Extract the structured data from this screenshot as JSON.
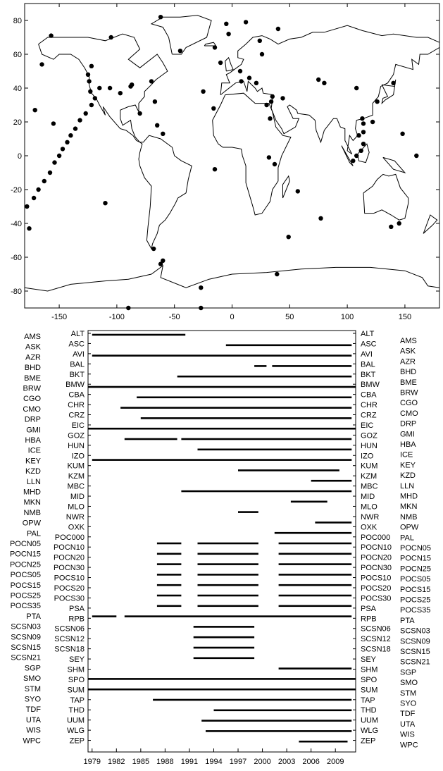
{
  "chart_data": [
    {
      "type": "scatter",
      "xlim": [
        -180,
        180
      ],
      "ylim": [
        -90,
        90
      ],
      "x_ticks": [
        -150,
        -100,
        -50,
        0,
        50,
        100,
        150
      ],
      "y_ticks": [
        80,
        60,
        40,
        20,
        0,
        -20,
        -40,
        -60,
        -80
      ],
      "grid": false,
      "points": [
        [
          -178,
          -30
        ],
        [
          -176,
          -43
        ],
        [
          -172,
          -25
        ],
        [
          -168,
          -20
        ],
        [
          -163,
          -15
        ],
        [
          -158,
          -10
        ],
        [
          -154,
          -4
        ],
        [
          -150,
          0
        ],
        [
          -147,
          4
        ],
        [
          -143,
          8
        ],
        [
          -140,
          12
        ],
        [
          -136,
          16
        ],
        [
          -132,
          21
        ],
        [
          -127,
          25
        ],
        [
          -122,
          30
        ],
        [
          -119,
          34
        ],
        [
          -123,
          38
        ],
        [
          -124,
          44
        ],
        [
          -125,
          48
        ],
        [
          -122,
          53
        ],
        [
          -157,
          71
        ],
        [
          -165,
          54
        ],
        [
          -171,
          27
        ],
        [
          -155,
          19
        ],
        [
          -106,
          40
        ],
        [
          -97,
          37
        ],
        [
          -88,
          41
        ],
        [
          -115,
          40
        ],
        [
          -110,
          -28
        ],
        [
          -67,
          32
        ],
        [
          -65,
          18
        ],
        [
          -60,
          13
        ],
        [
          -80,
          25
        ],
        [
          -87,
          42
        ],
        [
          -70,
          44
        ],
        [
          -68,
          -55
        ],
        [
          -60,
          -62
        ],
        [
          -25,
          38
        ],
        [
          -16,
          28
        ],
        [
          -15,
          64
        ],
        [
          -3,
          72
        ],
        [
          12,
          79
        ],
        [
          24,
          68
        ],
        [
          15,
          46
        ],
        [
          7,
          50
        ],
        [
          -10,
          55
        ],
        [
          8,
          44
        ],
        [
          21,
          43
        ],
        [
          34,
          32
        ],
        [
          30,
          30
        ],
        [
          35,
          35
        ],
        [
          33,
          22
        ],
        [
          32,
          -1
        ],
        [
          -15,
          -8
        ],
        [
          57,
          -21
        ],
        [
          37,
          -5
        ],
        [
          49,
          -48
        ],
        [
          77,
          -37
        ],
        [
          44,
          34
        ],
        [
          26,
          60
        ],
        [
          113,
          22
        ],
        [
          114,
          19
        ],
        [
          114,
          14
        ],
        [
          114,
          7
        ],
        [
          112,
          3
        ],
        [
          108,
          0
        ],
        [
          105,
          -3
        ],
        [
          110,
          12
        ],
        [
          122,
          20
        ],
        [
          108,
          40
        ],
        [
          140,
          43
        ],
        [
          148,
          13
        ],
        [
          145,
          -40
        ],
        [
          138,
          -42
        ],
        [
          160,
          0
        ],
        [
          -105,
          70
        ],
        [
          -45,
          62
        ],
        [
          -27,
          -78
        ],
        [
          -62,
          -64
        ],
        [
          -62,
          82
        ],
        [
          -5,
          78
        ],
        [
          40,
          75
        ],
        [
          75,
          45
        ],
        [
          80,
          43
        ],
        [
          -90,
          -90
        ],
        [
          39,
          -70
        ],
        [
          -27,
          -90
        ],
        [
          126,
          32
        ]
      ]
    },
    {
      "type": "timeline",
      "x_ticks": [
        1979,
        1982,
        1985,
        1988,
        1991,
        1994,
        1997,
        2000,
        2003,
        2006,
        2009
      ],
      "xlim": [
        1978.5,
        2011.5
      ],
      "stations_left": [
        "AMS",
        "ASK",
        "AZR",
        "BHD",
        "BME",
        "BRW",
        "CGO",
        "CMO",
        "DRP",
        "GMI",
        "HBA",
        "ICE",
        "KEY",
        "KZD",
        "LLN",
        "MHD",
        "MKN",
        "NMB",
        "OPW",
        "PAL",
        "POCN05",
        "POCN15",
        "POCN25",
        "POCS05",
        "POCS15",
        "POCS25",
        "POCS35",
        "PTA",
        "SCSN03",
        "SCSN09",
        "SCSN15",
        "SCSN21",
        "SGP",
        "SMO",
        "STM",
        "SYO",
        "TDF",
        "UTA",
        "WIS",
        "WPC"
      ],
      "stations_right": [
        "ALT",
        "ASC",
        "AVI",
        "BAL",
        "BKT",
        "BMW",
        "CBA",
        "CHR",
        "CRZ",
        "EIC",
        "GOZ",
        "HUN",
        "IZO",
        "KUM",
        "KZM",
        "MBC",
        "MID",
        "MLO",
        "NWR",
        "OXK",
        "POC000",
        "POCN10",
        "POCN20",
        "POCN30",
        "POCS10",
        "POCS20",
        "POCS30",
        "PSA",
        "RPB",
        "SCSN06",
        "SCSN12",
        "SCSN18",
        "SEY",
        "SHM",
        "SPO",
        "SUM",
        "TAP",
        "THD",
        "UUM",
        "WLG",
        "ZEP"
      ],
      "rows": [
        {
          "name": "AMS",
          "segments": [
            [
              1979,
              1990.5
            ]
          ]
        },
        {
          "name": "ASK",
          "segments": [
            [
              1995.5,
              2011
            ]
          ]
        },
        {
          "name": "AZR",
          "segments": [
            [
              1979,
              2011
            ]
          ]
        },
        {
          "name": "BHD",
          "segments": [
            [
              1999,
              2000.5
            ],
            [
              2001.2,
              2011
            ]
          ]
        },
        {
          "name": "BME",
          "segments": [
            [
              1989.5,
              2011
            ]
          ]
        },
        {
          "name": "BRW",
          "segments": [
            [
              1978.5,
              2011.5
            ]
          ]
        },
        {
          "name": "CGO",
          "segments": [
            [
              1984.5,
              2011
            ]
          ]
        },
        {
          "name": "CMO",
          "segments": [
            [
              1982.5,
              2011
            ]
          ]
        },
        {
          "name": "DRP",
          "segments": [
            [
              1985,
              2011
            ]
          ]
        },
        {
          "name": "GMI",
          "segments": [
            [
              1978.5,
              2011.5
            ]
          ]
        },
        {
          "name": "HBA",
          "segments": [
            [
              1983,
              1989.5
            ],
            [
              1990,
              2011
            ]
          ]
        },
        {
          "name": "ICE",
          "segments": [
            [
              1992,
              2011
            ]
          ]
        },
        {
          "name": "KEY",
          "segments": [
            [
              1979,
              2011
            ]
          ]
        },
        {
          "name": "KZD",
          "segments": [
            [
              1997,
              2009.5
            ]
          ]
        },
        {
          "name": "LLN",
          "segments": [
            [
              2006,
              2011
            ]
          ]
        },
        {
          "name": "MHD",
          "segments": [
            [
              1990,
              2011
            ]
          ]
        },
        {
          "name": "MKN",
          "segments": [
            [
              2003.5,
              2008
            ]
          ]
        },
        {
          "name": "NMB",
          "segments": [
            [
              1997,
              1999.5
            ]
          ]
        },
        {
          "name": "OPW",
          "segments": [
            [
              2006.5,
              2011
            ]
          ]
        },
        {
          "name": "PAL",
          "segments": [
            [
              2001.5,
              2011
            ]
          ]
        },
        {
          "name": "POCN05",
          "segments": [
            [
              1987,
              1990
            ],
            [
              1992,
              1999.5
            ],
            [
              2002,
              2011
            ]
          ]
        },
        {
          "name": "POCN15",
          "segments": [
            [
              1987,
              1990
            ],
            [
              1992,
              1999.5
            ],
            [
              2002,
              2011
            ]
          ]
        },
        {
          "name": "POCN25",
          "segments": [
            [
              1987,
              1990
            ],
            [
              1992,
              1999.5
            ],
            [
              2002,
              2011
            ]
          ]
        },
        {
          "name": "POCS05",
          "segments": [
            [
              1987,
              1990
            ],
            [
              1992,
              1999.5
            ],
            [
              2002,
              2011
            ]
          ]
        },
        {
          "name": "POCS15",
          "segments": [
            [
              1987,
              1990
            ],
            [
              1992,
              1999.5
            ],
            [
              2002,
              2011
            ]
          ]
        },
        {
          "name": "POCS25",
          "segments": [
            [
              1987,
              1990
            ],
            [
              1992,
              1999.5
            ],
            [
              2002,
              2011
            ]
          ]
        },
        {
          "name": "POCS35",
          "segments": [
            [
              1987,
              1990
            ],
            [
              1992,
              1999.5
            ],
            [
              2002,
              2011
            ]
          ]
        },
        {
          "name": "PTA",
          "segments": [
            [
              1979,
              1982
            ],
            [
              1983,
              2011
            ]
          ]
        },
        {
          "name": "SCSN03",
          "segments": [
            [
              1991.5,
              1999
            ]
          ]
        },
        {
          "name": "SCSN09",
          "segments": [
            [
              1991.5,
              1999
            ]
          ]
        },
        {
          "name": "SCSN15",
          "segments": [
            [
              1991.5,
              1999
            ]
          ]
        },
        {
          "name": "SCSN21",
          "segments": [
            [
              1991.5,
              1999
            ]
          ]
        },
        {
          "name": "SGP",
          "segments": [
            [
              2002,
              2011
            ]
          ]
        },
        {
          "name": "SMO",
          "segments": [
            [
              1978.5,
              2011.5
            ]
          ]
        },
        {
          "name": "STM",
          "segments": [
            [
              1978.5,
              2011.5
            ]
          ]
        },
        {
          "name": "SYO",
          "segments": [
            [
              1986.5,
              2011
            ]
          ]
        },
        {
          "name": "TDF",
          "segments": [
            [
              1994,
              2011
            ]
          ]
        },
        {
          "name": "UTA",
          "segments": [
            [
              1992.5,
              2011
            ]
          ]
        },
        {
          "name": "WIS",
          "segments": [
            [
              1993,
              2011
            ]
          ]
        },
        {
          "name": "WPC",
          "segments": [
            [
              2004.5,
              2010.5
            ]
          ]
        }
      ]
    }
  ]
}
